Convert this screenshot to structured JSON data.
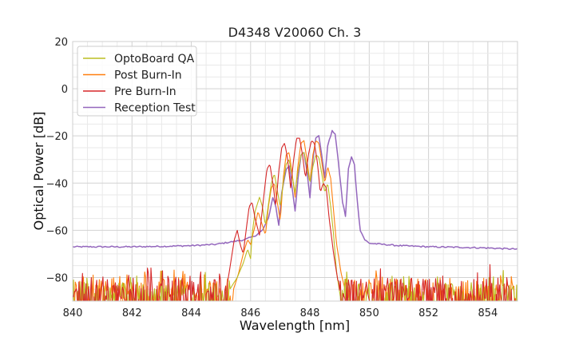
{
  "chart_data": {
    "type": "line",
    "title": "D4348 V20060 Ch. 3",
    "xlabel": "Wavelength [nm]",
    "ylabel": "Optical Power [dB]",
    "xlim": [
      840,
      855
    ],
    "ylim": [
      -90,
      20
    ],
    "xticks": [
      840,
      842,
      844,
      846,
      848,
      850,
      852,
      854
    ],
    "yticks": [
      20,
      0,
      -20,
      -40,
      -60,
      -80
    ],
    "grid": true,
    "legend_position": "top-left",
    "series": [
      {
        "name": "OptoBoard QA",
        "color": "#bcbd22",
        "noise_floor_db": -82,
        "points": [
          [
            845.3,
            -85
          ],
          [
            845.55,
            -80
          ],
          [
            845.75,
            -74
          ],
          [
            845.9,
            -68
          ],
          [
            846.0,
            -72
          ],
          [
            846.05,
            -62
          ],
          [
            846.15,
            -52
          ],
          [
            846.3,
            -46
          ],
          [
            846.4,
            -50
          ],
          [
            846.5,
            -58
          ],
          [
            846.6,
            -49
          ],
          [
            846.7,
            -40
          ],
          [
            846.8,
            -36
          ],
          [
            846.9,
            -43
          ],
          [
            847.0,
            -50
          ],
          [
            847.1,
            -40
          ],
          [
            847.2,
            -32
          ],
          [
            847.3,
            -30
          ],
          [
            847.4,
            -37
          ],
          [
            847.5,
            -44
          ],
          [
            847.6,
            -35
          ],
          [
            847.7,
            -28
          ],
          [
            847.8,
            -27
          ],
          [
            847.9,
            -33
          ],
          [
            848.0,
            -40
          ],
          [
            848.1,
            -33
          ],
          [
            848.2,
            -28
          ],
          [
            848.3,
            -29
          ],
          [
            848.4,
            -36
          ],
          [
            848.5,
            -44
          ],
          [
            848.6,
            -40
          ],
          [
            848.7,
            -50
          ],
          [
            848.8,
            -62
          ],
          [
            848.9,
            -78
          ],
          [
            849.0,
            -86
          ]
        ]
      },
      {
        "name": "Post Burn-In",
        "color": "#ff7f0e",
        "noise_floor_db": -80,
        "points": [
          [
            845.4,
            -86
          ],
          [
            845.6,
            -78
          ],
          [
            845.75,
            -70
          ],
          [
            845.9,
            -64
          ],
          [
            846.0,
            -66
          ],
          [
            846.15,
            -58
          ],
          [
            846.25,
            -52
          ],
          [
            846.35,
            -56
          ],
          [
            846.5,
            -62
          ],
          [
            846.6,
            -50
          ],
          [
            846.7,
            -42
          ],
          [
            846.8,
            -40
          ],
          [
            846.9,
            -48
          ],
          [
            847.0,
            -56
          ],
          [
            847.1,
            -38
          ],
          [
            847.2,
            -28
          ],
          [
            847.3,
            -27
          ],
          [
            847.4,
            -36
          ],
          [
            847.5,
            -46
          ],
          [
            847.6,
            -32
          ],
          [
            847.7,
            -23
          ],
          [
            847.8,
            -22
          ],
          [
            847.9,
            -30
          ],
          [
            848.0,
            -40
          ],
          [
            848.1,
            -28
          ],
          [
            848.2,
            -22
          ],
          [
            848.3,
            -23
          ],
          [
            848.4,
            -31
          ],
          [
            848.5,
            -40
          ],
          [
            848.6,
            -33
          ],
          [
            848.7,
            -38
          ],
          [
            848.8,
            -52
          ],
          [
            848.9,
            -66
          ],
          [
            849.05,
            -78
          ],
          [
            849.2,
            -86
          ]
        ]
      },
      {
        "name": "Pre Burn-In",
        "color": "#d62728",
        "noise_floor_db": -80,
        "points": [
          [
            845.2,
            -84
          ],
          [
            845.35,
            -72
          ],
          [
            845.45,
            -64
          ],
          [
            845.55,
            -60
          ],
          [
            845.65,
            -66
          ],
          [
            845.75,
            -70
          ],
          [
            845.85,
            -60
          ],
          [
            845.95,
            -50
          ],
          [
            846.05,
            -48
          ],
          [
            846.15,
            -55
          ],
          [
            846.3,
            -62
          ],
          [
            846.45,
            -45
          ],
          [
            846.55,
            -34
          ],
          [
            846.65,
            -32
          ],
          [
            846.75,
            -40
          ],
          [
            846.85,
            -50
          ],
          [
            846.95,
            -35
          ],
          [
            847.05,
            -25
          ],
          [
            847.15,
            -23
          ],
          [
            847.25,
            -30
          ],
          [
            847.35,
            -42
          ],
          [
            847.45,
            -30
          ],
          [
            847.55,
            -21
          ],
          [
            847.65,
            -21
          ],
          [
            847.75,
            -28
          ],
          [
            847.85,
            -38
          ],
          [
            847.95,
            -28
          ],
          [
            848.05,
            -22
          ],
          [
            848.15,
            -23
          ],
          [
            848.25,
            -31
          ],
          [
            848.35,
            -44
          ],
          [
            848.45,
            -40
          ],
          [
            848.55,
            -42
          ],
          [
            848.65,
            -55
          ],
          [
            848.8,
            -70
          ],
          [
            848.95,
            -82
          ]
        ]
      },
      {
        "name": "Reception Test",
        "color": "#9467bd",
        "noise_floor_db": -67,
        "points": [
          [
            840.0,
            -67
          ],
          [
            841.0,
            -67
          ],
          [
            842.0,
            -67
          ],
          [
            843.0,
            -66.8
          ],
          [
            844.0,
            -66.5
          ],
          [
            844.8,
            -66
          ],
          [
            845.3,
            -65
          ],
          [
            845.8,
            -64
          ],
          [
            846.2,
            -62
          ],
          [
            846.4,
            -60
          ],
          [
            846.6,
            -55
          ],
          [
            846.75,
            -46
          ],
          [
            846.85,
            -50
          ],
          [
            846.95,
            -58
          ],
          [
            847.05,
            -44
          ],
          [
            847.2,
            -34
          ],
          [
            847.3,
            -33
          ],
          [
            847.4,
            -42
          ],
          [
            847.5,
            -52
          ],
          [
            847.6,
            -38
          ],
          [
            847.7,
            -28
          ],
          [
            847.8,
            -27
          ],
          [
            847.9,
            -35
          ],
          [
            848.0,
            -46
          ],
          [
            848.1,
            -30
          ],
          [
            848.2,
            -21
          ],
          [
            848.3,
            -20
          ],
          [
            848.4,
            -28
          ],
          [
            848.5,
            -38
          ],
          [
            848.6,
            -24
          ],
          [
            848.75,
            -18
          ],
          [
            848.85,
            -19
          ],
          [
            848.95,
            -30
          ],
          [
            849.1,
            -48
          ],
          [
            849.2,
            -54
          ],
          [
            849.3,
            -34
          ],
          [
            849.4,
            -29
          ],
          [
            849.5,
            -32
          ],
          [
            849.6,
            -48
          ],
          [
            849.7,
            -60
          ],
          [
            849.85,
            -64
          ],
          [
            850.0,
            -65.5
          ],
          [
            851.0,
            -66.5
          ],
          [
            852.0,
            -67
          ],
          [
            853.0,
            -67.2
          ],
          [
            854.0,
            -67.5
          ],
          [
            855.0,
            -68
          ]
        ]
      }
    ]
  }
}
